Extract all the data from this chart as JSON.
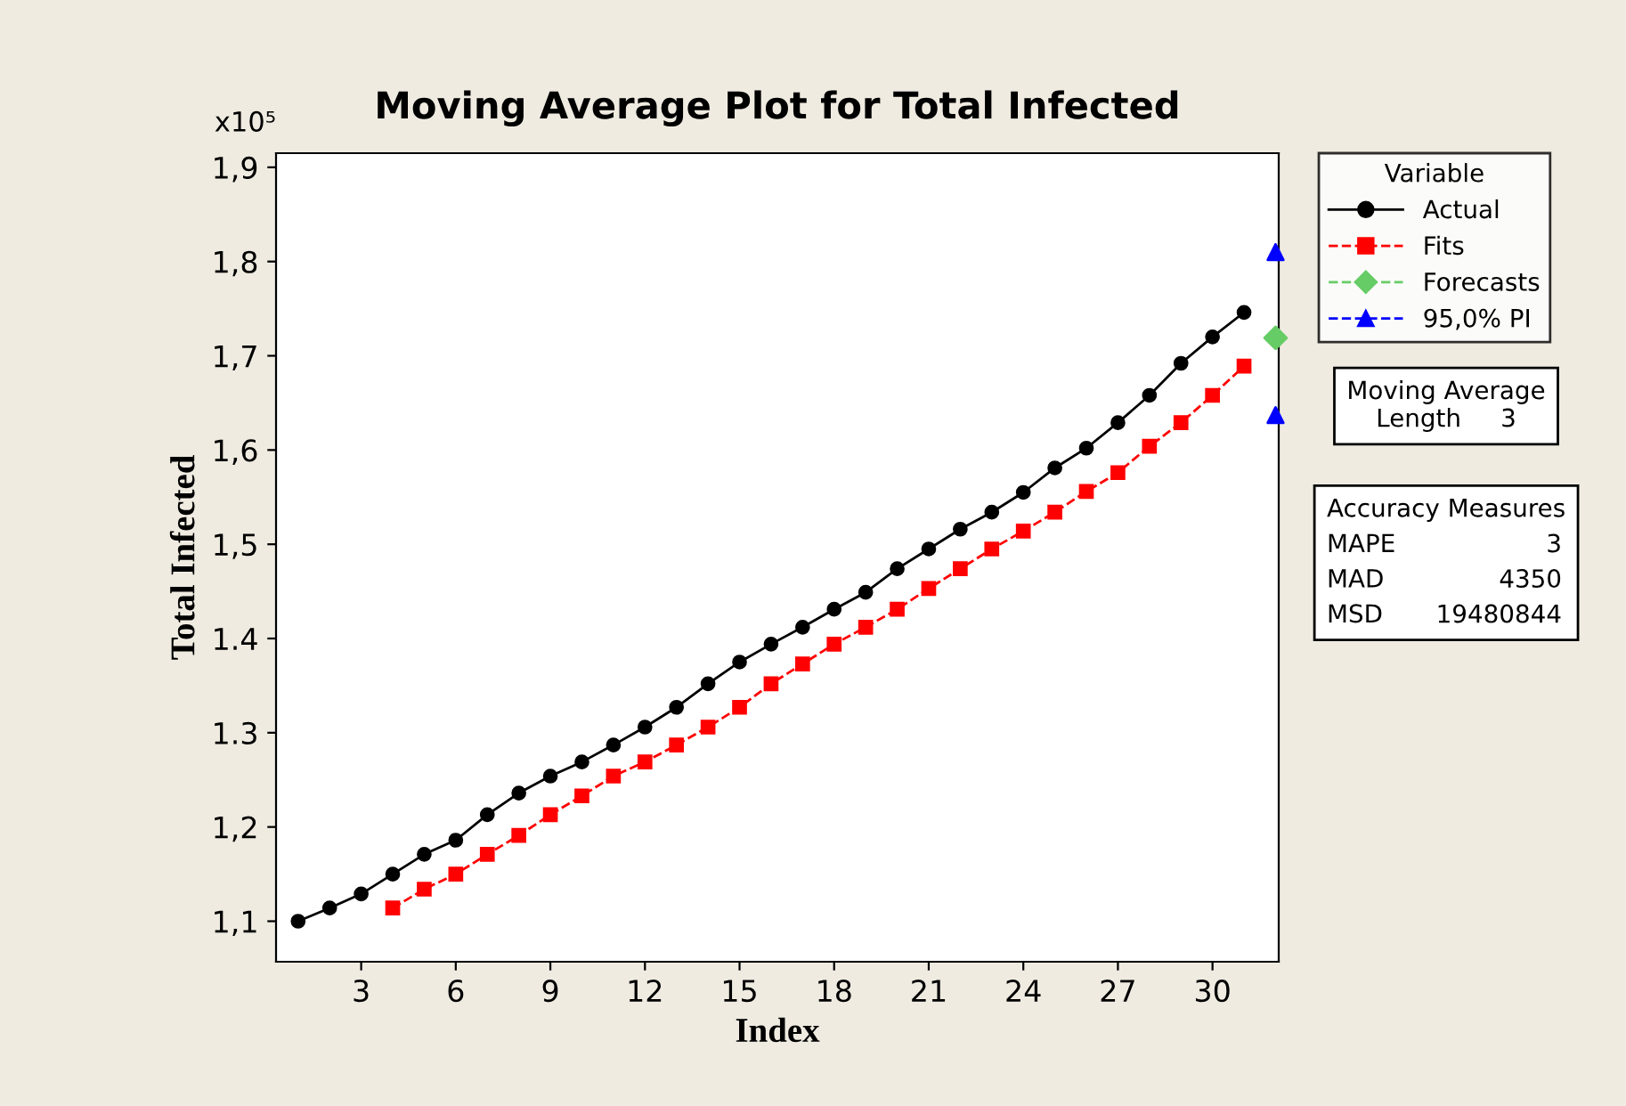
{
  "chart_data": {
    "type": "line",
    "title": "Moving Average Plot for Total Infected",
    "xlabel": "Index",
    "ylabel": "Total Infected",
    "xlim": [
      0.3,
      32.1
    ],
    "xticks": [
      3,
      6,
      9,
      12,
      15,
      18,
      21,
      24,
      27,
      30
    ],
    "ylim": [
      1.057,
      1.915
    ],
    "yticks": [
      {
        "value": 1.1,
        "label": "1,1"
      },
      {
        "value": 1.2,
        "label": "1,2"
      },
      {
        "value": 1.3,
        "label": "1.3"
      },
      {
        "value": 1.4,
        "label": "1.4"
      },
      {
        "value": 1.5,
        "label": "1,5"
      },
      {
        "value": 1.6,
        "label": "1,6"
      },
      {
        "value": 1.7,
        "label": "1,7"
      },
      {
        "value": 1.8,
        "label": "1,8"
      },
      {
        "value": 1.9,
        "label": "1,9"
      }
    ],
    "grid": false,
    "legend": "right",
    "legend_title": "Variable",
    "series": [
      {
        "name": "Actual",
        "type": "line",
        "color": "#000000",
        "marker": "circle",
        "line_style": "solid",
        "x": [
          1,
          2,
          3,
          4,
          5,
          6,
          7,
          8,
          9,
          10,
          11,
          12,
          13,
          14,
          15,
          16,
          17,
          18,
          19,
          20,
          21,
          22,
          23,
          24,
          25,
          26,
          27,
          28,
          29,
          30,
          31
        ],
        "values": [
          1.1,
          1.114,
          1.129,
          1.15,
          1.171,
          1.186,
          1.213,
          1.236,
          1.254,
          1.269,
          1.287,
          1.306,
          1.327,
          1.352,
          1.375,
          1.394,
          1.412,
          1.431,
          1.449,
          1.474,
          1.495,
          1.516,
          1.534,
          1.555,
          1.581,
          1.602,
          1.629,
          1.658,
          1.692,
          1.72,
          1.746
        ]
      },
      {
        "name": "Fits",
        "type": "line",
        "color": "#ff0000",
        "marker": "square",
        "line_style": "dashed",
        "x": [
          4,
          5,
          6,
          7,
          8,
          9,
          10,
          11,
          12,
          13,
          14,
          15,
          16,
          17,
          18,
          19,
          20,
          21,
          22,
          23,
          24,
          25,
          26,
          27,
          28,
          29,
          30,
          31
        ],
        "values": [
          1.114,
          1.134,
          1.15,
          1.171,
          1.191,
          1.213,
          1.233,
          1.254,
          1.269,
          1.287,
          1.306,
          1.327,
          1.352,
          1.373,
          1.394,
          1.412,
          1.431,
          1.453,
          1.474,
          1.495,
          1.514,
          1.534,
          1.556,
          1.576,
          1.604,
          1.629,
          1.658,
          1.689
        ]
      },
      {
        "name": "Forecasts",
        "type": "scatter",
        "color": "#66cc66",
        "marker": "diamond",
        "line_style": "dashed",
        "x": [
          32
        ],
        "values": [
          1.719
        ]
      },
      {
        "name": "95,0% PI",
        "type": "scatter",
        "color": "#0000ff",
        "marker": "triangle",
        "line_style": "dashed",
        "x": [
          32,
          32
        ],
        "values": [
          1.81,
          1.637
        ]
      }
    ],
    "annotations": [
      "x10⁵",
      "Moving Average\nLength     3",
      "Accuracy Measures\nMAPE\nMAD\nMSD",
      "3\n4350\n19480844"
    ]
  }
}
